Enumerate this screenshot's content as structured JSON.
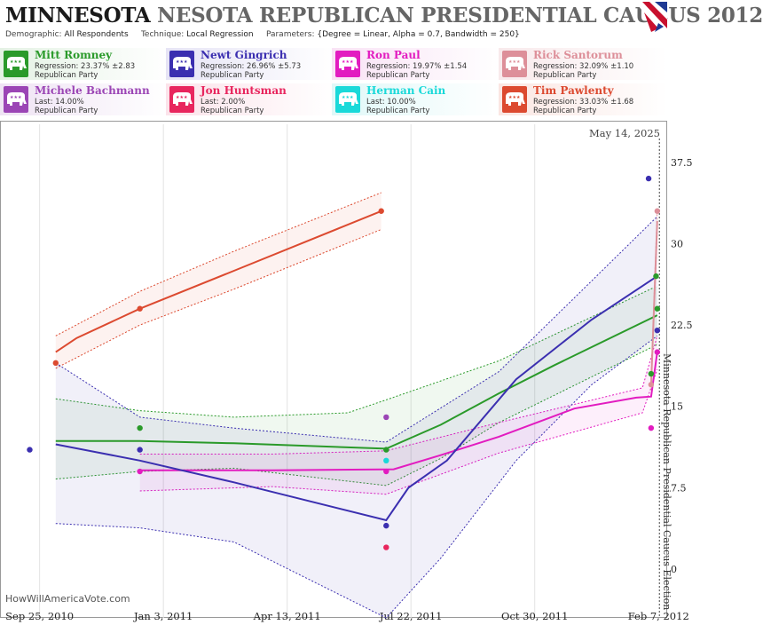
{
  "header": {
    "title_state": "MINNESOTA",
    "title_rest": "NESOTA REPUBLICAN PRESIDENTIAL CAUCUS 2012",
    "demographic_label": "Demographic:",
    "demographic": "All Respondents",
    "technique_label": "Technique:",
    "technique": "Local Regression",
    "parameters_label": "Parameters:",
    "parameters": "{Degree = Linear, Alpha = 0.7, Bandwidth = 250}"
  },
  "legend": [
    {
      "name": "Mitt Romney",
      "stat": "Regression: 23.37% ±2.83",
      "party": "Republican Party",
      "color": "#2a9a2a",
      "bg": "#e4f2e4"
    },
    {
      "name": "Newt Gingrich",
      "stat": "Regression: 26.96% ±5.73",
      "party": "Republican Party",
      "color": "#3b2fb0",
      "bg": "#e6e4f5"
    },
    {
      "name": "Ron Paul",
      "stat": "Regression: 19.97% ±1.54",
      "party": "Republican Party",
      "color": "#e21cc0",
      "bg": "#f9e2f5"
    },
    {
      "name": "Rick Santorum",
      "stat": "Regression: 32.09% ±1.10",
      "party": "Republican Party",
      "color": "#dd8f99",
      "bg": "#f8e9eb"
    },
    {
      "name": "Michele Bachmann",
      "stat": "Last: 14.00%",
      "party": "Republican Party",
      "color": "#9b45b5",
      "bg": "#efe3f4"
    },
    {
      "name": "Jon Huntsman",
      "stat": "Last: 2.00%",
      "party": "Republican Party",
      "color": "#e8265e",
      "bg": "#fbe3ea"
    },
    {
      "name": "Herman Cain",
      "stat": "Last: 10.00%",
      "party": "Republican Party",
      "color": "#1ad9d9",
      "bg": "#e0f8f8"
    },
    {
      "name": "Tim Pawlenty",
      "stat": "Regression: 33.03% ±1.68",
      "party": "Republican Party",
      "color": "#dc4a30",
      "bg": "#fae6e2"
    }
  ],
  "watermark": "HowWillAmericaVote.com",
  "chart_data": {
    "type": "line",
    "x_ticks": [
      "Sep 25, 2010",
      "Jan 3, 2011",
      "Apr 13, 2011",
      "Jul 22, 2011",
      "Oct 30, 2011",
      "Feb 7, 2012"
    ],
    "y_ticks": [
      0,
      7.5,
      15,
      22.5,
      30,
      37.5
    ],
    "ylim": [
      -4.5,
      41
    ],
    "xlim": [
      "2010-08-24",
      "2012-02-14"
    ],
    "today_label": "May 14, 2025",
    "election_label": "Minnesota Republican Presidential Caucus Election",
    "election_date": "2012-02-07",
    "series": [
      {
        "name": "Tim Pawlenty",
        "color": "#dc4a30",
        "band_color": "#dc4a30",
        "points": [
          [
            "2010-10-08",
            19
          ],
          [
            "2010-12-15",
            24
          ],
          [
            "2011-06-28",
            33
          ]
        ],
        "line": [
          [
            "2010-10-08",
            20
          ],
          [
            "2010-10-25",
            21.3
          ],
          [
            "2010-12-15",
            24
          ],
          [
            "2011-03-01",
            27.5
          ],
          [
            "2011-06-28",
            33
          ]
        ],
        "upper": [
          [
            "2010-10-08",
            21.5
          ],
          [
            "2010-12-15",
            25.6
          ],
          [
            "2011-03-01",
            29.3
          ],
          [
            "2011-06-28",
            34.7
          ]
        ],
        "lower": [
          [
            "2010-10-08",
            18.5
          ],
          [
            "2010-12-15",
            22.5
          ],
          [
            "2011-03-01",
            25.8
          ],
          [
            "2011-06-28",
            31.3
          ]
        ]
      },
      {
        "name": "Mitt Romney",
        "color": "#2a9a2a",
        "band_color": "#2a9a2a",
        "points": [
          [
            "2010-12-15",
            13
          ],
          [
            "2011-07-02",
            11
          ],
          [
            "2012-02-01",
            18
          ],
          [
            "2012-02-05",
            27
          ],
          [
            "2012-02-06",
            24
          ]
        ],
        "line": [
          [
            "2010-10-08",
            11.8
          ],
          [
            "2010-12-15",
            11.8
          ],
          [
            "2011-03-01",
            11.6
          ],
          [
            "2011-07-02",
            11.1
          ],
          [
            "2011-08-15",
            13.3
          ],
          [
            "2011-10-01",
            16.2
          ],
          [
            "2011-11-15",
            18.8
          ],
          [
            "2012-02-06",
            23.4
          ]
        ],
        "upper": [
          [
            "2010-10-08",
            15.7
          ],
          [
            "2010-12-15",
            14.6
          ],
          [
            "2011-03-01",
            14.0
          ],
          [
            "2011-06-01",
            14.4
          ],
          [
            "2011-07-02",
            15.6
          ],
          [
            "2011-10-01",
            19.2
          ],
          [
            "2012-02-06",
            26.1
          ]
        ],
        "lower": [
          [
            "2010-10-08",
            8.3
          ],
          [
            "2010-12-15",
            9.0
          ],
          [
            "2011-03-01",
            9.3
          ],
          [
            "2011-07-02",
            7.7
          ],
          [
            "2011-08-15",
            10.2
          ],
          [
            "2011-10-01",
            13.5
          ],
          [
            "2012-02-06",
            20.7
          ]
        ]
      },
      {
        "name": "Ron Paul",
        "color": "#e21cc0",
        "band_color": "#e21cc0",
        "points": [
          [
            "2010-12-15",
            9
          ],
          [
            "2011-07-02",
            9
          ],
          [
            "2012-02-01",
            13
          ],
          [
            "2012-02-06",
            20
          ]
        ],
        "line": [
          [
            "2010-12-15",
            9.1
          ],
          [
            "2011-04-01",
            9.1
          ],
          [
            "2011-07-08",
            9.2
          ],
          [
            "2011-08-15",
            10.5
          ],
          [
            "2011-10-01",
            12.2
          ],
          [
            "2011-12-01",
            14.8
          ],
          [
            "2012-01-20",
            15.8
          ],
          [
            "2012-02-01",
            15.9
          ],
          [
            "2012-02-06",
            20
          ]
        ],
        "upper": [
          [
            "2010-12-15",
            10.6
          ],
          [
            "2011-04-01",
            10.6
          ],
          [
            "2011-07-02",
            10.9
          ],
          [
            "2011-10-01",
            13.5
          ],
          [
            "2012-01-25",
            16.7
          ],
          [
            "2012-02-06",
            21.5
          ]
        ],
        "lower": [
          [
            "2010-12-15",
            7.2
          ],
          [
            "2011-04-01",
            7.6
          ],
          [
            "2011-07-02",
            6.9
          ],
          [
            "2011-10-01",
            10.7
          ],
          [
            "2012-01-25",
            14.4
          ],
          [
            "2012-02-06",
            18.4
          ]
        ]
      },
      {
        "name": "Newt Gingrich",
        "color": "#3b2fb0",
        "band_color": "#3b2fb0",
        "points": [
          [
            "2010-09-17",
            11
          ],
          [
            "2010-12-15",
            11
          ],
          [
            "2011-07-02",
            4
          ],
          [
            "2012-01-30",
            36
          ],
          [
            "2012-02-06",
            22
          ]
        ],
        "line": [
          [
            "2010-10-08",
            11.5
          ],
          [
            "2010-12-15",
            10
          ],
          [
            "2011-03-01",
            8
          ],
          [
            "2011-07-02",
            4.5
          ],
          [
            "2011-07-20",
            7.5
          ],
          [
            "2011-08-20",
            10
          ],
          [
            "2011-10-15",
            17.5
          ],
          [
            "2011-12-15",
            23
          ],
          [
            "2012-02-06",
            27
          ]
        ],
        "upper": [
          [
            "2010-10-08",
            19
          ],
          [
            "2010-12-15",
            14
          ],
          [
            "2011-03-01",
            13
          ],
          [
            "2011-07-02",
            11.7
          ],
          [
            "2011-10-01",
            18.2
          ],
          [
            "2011-12-01",
            25
          ],
          [
            "2012-02-06",
            32.5
          ]
        ],
        "lower": [
          [
            "2010-10-08",
            4.2
          ],
          [
            "2010-12-15",
            3.8
          ],
          [
            "2011-03-01",
            2.5
          ],
          [
            "2011-07-02",
            -4.5
          ],
          [
            "2011-08-15",
            1
          ],
          [
            "2011-10-15",
            10
          ],
          [
            "2011-12-15",
            17
          ],
          [
            "2012-02-06",
            21.5
          ]
        ]
      },
      {
        "name": "Rick Santorum",
        "color": "#dd8f99",
        "band_color": "#dd8f99",
        "points": [
          [
            "2012-02-01",
            17
          ],
          [
            "2012-02-06",
            33
          ]
        ],
        "line": [
          [
            "2012-02-01",
            17
          ],
          [
            "2012-02-06",
            32.1
          ]
        ],
        "upper": [
          [
            "2012-02-01",
            17.5
          ],
          [
            "2012-02-06",
            33.2
          ]
        ],
        "lower": [
          [
            "2012-02-01",
            16.5
          ],
          [
            "2012-02-06",
            31
          ]
        ]
      },
      {
        "name": "Michele Bachmann",
        "color": "#9b45b5",
        "points": [
          [
            "2011-07-02",
            14
          ]
        ]
      },
      {
        "name": "Jon Huntsman",
        "color": "#e8265e",
        "points": [
          [
            "2011-07-02",
            2
          ]
        ]
      },
      {
        "name": "Herman Cain",
        "color": "#1ad9d9",
        "points": [
          [
            "2011-07-02",
            10
          ]
        ]
      }
    ]
  }
}
